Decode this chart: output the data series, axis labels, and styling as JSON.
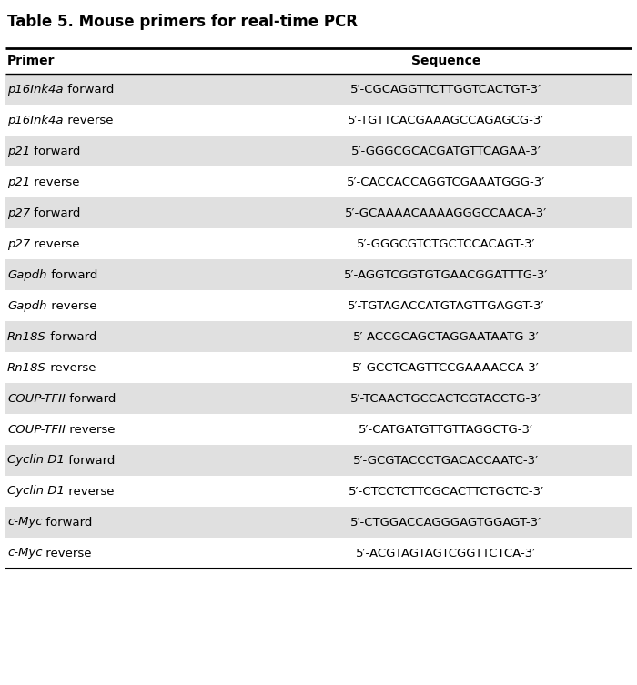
{
  "title": "Table 5. Mouse primers for real-time PCR",
  "col_headers": [
    "Primer",
    "Sequence"
  ],
  "rows": [
    {
      "primer": "p16Ink4a forward",
      "sequence": "5′-CGCAGGTTCTTGGTCACTGT-3′",
      "italic_part": "p16Ink4a",
      "rest": " forward",
      "shaded": true
    },
    {
      "primer": "p16Ink4a reverse",
      "sequence": "5′-TGTTCACGAAAGCCAGAGCG-3′",
      "italic_part": "p16Ink4a",
      "rest": " reverse",
      "shaded": false
    },
    {
      "primer": "p21 forward",
      "sequence": "5′-GGGCGCACGATGTTCAGAA-3′",
      "italic_part": "p21",
      "rest": " forward",
      "shaded": true
    },
    {
      "primer": "p21 reverse",
      "sequence": "5′-CACCACCAGGTCGAAATGGG-3′",
      "italic_part": "p21",
      "rest": " reverse",
      "shaded": false
    },
    {
      "primer": "p27 forward",
      "sequence": "5′-GCAAAACAAAAGGGCCAACA-3′",
      "italic_part": "p27",
      "rest": " forward",
      "shaded": true
    },
    {
      "primer": "p27 reverse",
      "sequence": "5′-GGGCGTCTGCTCCACAGT-3′",
      "italic_part": "p27",
      "rest": " reverse",
      "shaded": false
    },
    {
      "primer": "Gapdh forward",
      "sequence": "5′-AGGTCGGTGTGAACGGATTTG-3′",
      "italic_part": "Gapdh",
      "rest": " forward",
      "shaded": true
    },
    {
      "primer": "Gapdh reverse",
      "sequence": "5′-TGTAGACCATGTAGTTGAGGT-3′",
      "italic_part": "Gapdh",
      "rest": " reverse",
      "shaded": false
    },
    {
      "primer": "Rn18S forward",
      "sequence": "5′-ACCGCAGCTAGGAATAATG-3′",
      "italic_part": "Rn18S",
      "rest": " forward",
      "shaded": true
    },
    {
      "primer": "Rn18S reverse",
      "sequence": "5′-GCCTCAGTTCCGAAAACCA-3′",
      "italic_part": "Rn18S",
      "rest": " reverse",
      "shaded": false
    },
    {
      "primer": "COUP-TFII forward",
      "sequence": "5′-TCAACTGCCACTCGTACCTG-3′",
      "italic_part": "COUP-TFII",
      "rest": " forward",
      "shaded": true
    },
    {
      "primer": "COUP-TFII reverse",
      "sequence": "5′-CATGATGTTGTTAGGCTG-3′",
      "italic_part": "COUP-TFII",
      "rest": " reverse",
      "shaded": false
    },
    {
      "primer": "Cyclin D1 forward",
      "sequence": "5′-GCGTACCCTGACACCAATC-3′",
      "italic_part": "Cyclin D1",
      "rest": " forward",
      "shaded": true
    },
    {
      "primer": "Cyclin D1 reverse",
      "sequence": "5′-CTCCTCTTCGCACTTCTGCTC-3′",
      "italic_part": "Cyclin D1",
      "rest": " reverse",
      "shaded": false
    },
    {
      "primer": "c-Myc forward",
      "sequence": "5′-CTGGACCAGGGAGTGGAGT-3′",
      "italic_part": "c-Myc",
      "rest": " forward",
      "shaded": true
    },
    {
      "primer": "c-Myc reverse",
      "sequence": "5′-ACGTAGTAGTCGGTTCTCA-3′",
      "italic_part": "c-Myc",
      "rest": " reverse",
      "shaded": false
    }
  ],
  "shaded_color": "#e0e0e0",
  "white_color": "#ffffff",
  "bg_color": "#ffffff",
  "title_fontsize": 12,
  "header_fontsize": 10,
  "row_fontsize": 9.5,
  "fig_width": 7.0,
  "fig_height": 7.53
}
